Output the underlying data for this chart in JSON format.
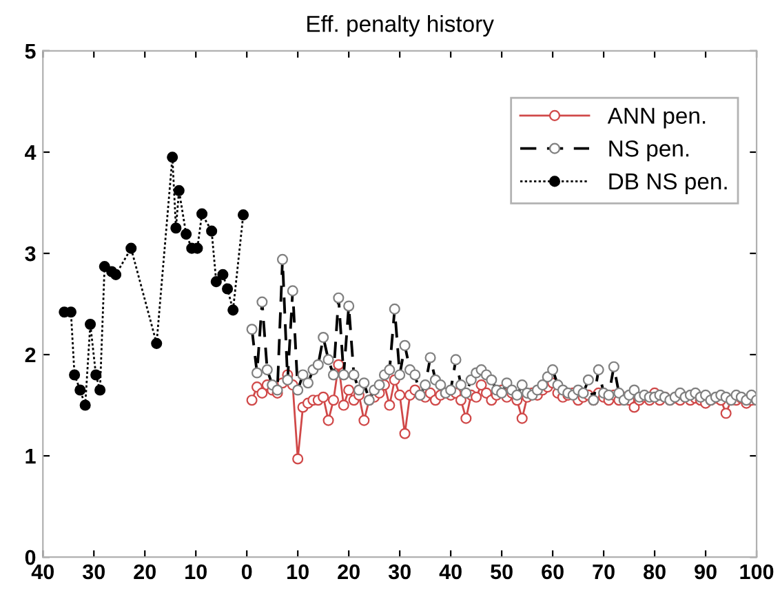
{
  "chart_data": {
    "type": "line",
    "title": "Eff. penalty history",
    "xlim": [
      -40,
      100
    ],
    "ylim": [
      0,
      5
    ],
    "xticks": [
      {
        "value": -40,
        "label": "40"
      },
      {
        "value": -30,
        "label": "30"
      },
      {
        "value": -20,
        "label": "20"
      },
      {
        "value": -10,
        "label": "10"
      },
      0,
      10,
      20,
      30,
      40,
      50,
      60,
      70,
      80,
      90,
      100
    ],
    "yticks": [
      0,
      1,
      2,
      3,
      4,
      5
    ],
    "grid": false,
    "legend": "top right",
    "series": [
      {
        "name": "ANN pen.",
        "color": "#d04848",
        "marker": "circle",
        "line_style": "solid",
        "x": [
          1,
          2,
          3,
          4,
          5,
          6,
          7,
          8,
          9,
          10,
          11,
          12,
          13,
          14,
          15,
          16,
          17,
          18,
          19,
          20,
          21,
          22,
          23,
          24,
          25,
          26,
          27,
          28,
          29,
          30,
          31,
          32,
          33,
          34,
          35,
          36,
          37,
          38,
          39,
          40,
          41,
          42,
          43,
          44,
          45,
          46,
          47,
          48,
          49,
          50,
          51,
          52,
          53,
          54,
          55,
          56,
          57,
          58,
          59,
          60,
          61,
          62,
          63,
          64,
          65,
          66,
          67,
          68,
          69,
          70,
          71,
          72,
          73,
          74,
          75,
          76,
          77,
          78,
          79,
          80,
          81,
          82,
          83,
          84,
          85,
          86,
          87,
          88,
          89,
          90,
          91,
          92,
          93,
          94,
          95,
          96,
          97,
          98,
          99,
          100
        ],
        "values": [
          1.55,
          1.68,
          1.62,
          1.7,
          1.65,
          1.62,
          1.72,
          1.8,
          1.7,
          0.97,
          1.48,
          1.52,
          1.55,
          1.55,
          1.58,
          1.35,
          1.55,
          1.9,
          1.5,
          1.65,
          1.55,
          1.6,
          1.35,
          1.55,
          1.58,
          1.62,
          1.7,
          1.5,
          1.75,
          1.6,
          1.22,
          1.6,
          1.65,
          1.6,
          1.58,
          1.62,
          1.55,
          1.6,
          1.62,
          1.6,
          1.62,
          1.55,
          1.37,
          1.6,
          1.58,
          1.7,
          1.62,
          1.55,
          1.6,
          1.65,
          1.58,
          1.62,
          1.55,
          1.37,
          1.58,
          1.62,
          1.6,
          1.65,
          1.68,
          1.72,
          1.62,
          1.58,
          1.6,
          1.62,
          1.55,
          1.58,
          1.6,
          1.55,
          1.62,
          1.58,
          1.55,
          1.6,
          1.55,
          1.58,
          1.55,
          1.48,
          1.55,
          1.58,
          1.55,
          1.62,
          1.55,
          1.58,
          1.55,
          1.57,
          1.55,
          1.58,
          1.55,
          1.57,
          1.55,
          1.52,
          1.55,
          1.57,
          1.55,
          1.42,
          1.55,
          1.55,
          1.57,
          1.52,
          1.55,
          1.55
        ]
      },
      {
        "name": "NS pen.",
        "color": "#000000",
        "marker": "circle",
        "line_style": "dashed",
        "x": [
          1,
          2,
          3,
          4,
          5,
          6,
          7,
          8,
          9,
          10,
          11,
          12,
          13,
          14,
          15,
          16,
          17,
          18,
          19,
          20,
          21,
          22,
          23,
          24,
          25,
          26,
          27,
          28,
          29,
          30,
          31,
          32,
          33,
          34,
          35,
          36,
          37,
          38,
          39,
          40,
          41,
          42,
          43,
          44,
          45,
          46,
          47,
          48,
          49,
          50,
          51,
          52,
          53,
          54,
          55,
          56,
          57,
          58,
          59,
          60,
          61,
          62,
          63,
          64,
          65,
          66,
          67,
          68,
          69,
          70,
          71,
          72,
          73,
          74,
          75,
          76,
          77,
          78,
          79,
          80,
          81,
          82,
          83,
          84,
          85,
          86,
          87,
          88,
          89,
          90,
          91,
          92,
          93,
          94,
          95,
          96,
          97,
          98,
          99,
          100
        ],
        "values": [
          2.25,
          1.82,
          2.52,
          1.85,
          1.7,
          1.65,
          2.94,
          1.75,
          2.63,
          1.65,
          1.8,
          1.72,
          1.85,
          1.9,
          2.17,
          1.95,
          1.8,
          2.56,
          1.8,
          2.48,
          1.8,
          1.65,
          1.72,
          1.55,
          1.65,
          1.7,
          1.8,
          1.85,
          2.45,
          1.8,
          2.09,
          1.85,
          1.8,
          1.6,
          1.7,
          1.97,
          1.75,
          1.7,
          1.62,
          1.65,
          1.95,
          1.7,
          1.62,
          1.75,
          1.82,
          1.85,
          1.8,
          1.75,
          1.65,
          1.62,
          1.72,
          1.65,
          1.6,
          1.7,
          1.62,
          1.6,
          1.65,
          1.7,
          1.78,
          1.85,
          1.7,
          1.65,
          1.62,
          1.6,
          1.65,
          1.62,
          1.75,
          1.55,
          1.85,
          1.62,
          1.6,
          1.88,
          1.62,
          1.55,
          1.6,
          1.65,
          1.58,
          1.6,
          1.58,
          1.58,
          1.6,
          1.58,
          1.55,
          1.58,
          1.62,
          1.58,
          1.6,
          1.62,
          1.58,
          1.6,
          1.55,
          1.58,
          1.6,
          1.58,
          1.55,
          1.6,
          1.58,
          1.55,
          1.6,
          1.55
        ]
      },
      {
        "name": "DB NS pen.",
        "color": "#000000",
        "marker": "circle",
        "line_style": "dotted",
        "x": [
          -35.8,
          -34.5,
          -33.8,
          -32.7,
          -31.7,
          -30.7,
          -29.6,
          -28.8,
          -27.9,
          -26.5,
          -25.7,
          -22.7,
          -17.7,
          -14.6,
          -13.9,
          -13.3,
          -11.9,
          -10.8,
          -9.7,
          -8.8,
          -6.9,
          -6.0,
          -4.7,
          -3.8,
          -2.7,
          -0.7
        ],
        "values": [
          2.42,
          2.42,
          1.8,
          1.65,
          1.5,
          2.3,
          1.8,
          1.65,
          2.87,
          2.82,
          2.79,
          3.05,
          2.11,
          3.95,
          3.25,
          3.62,
          3.19,
          3.05,
          3.05,
          3.39,
          3.22,
          2.72,
          2.79,
          2.65,
          2.44,
          3.38
        ]
      }
    ]
  }
}
